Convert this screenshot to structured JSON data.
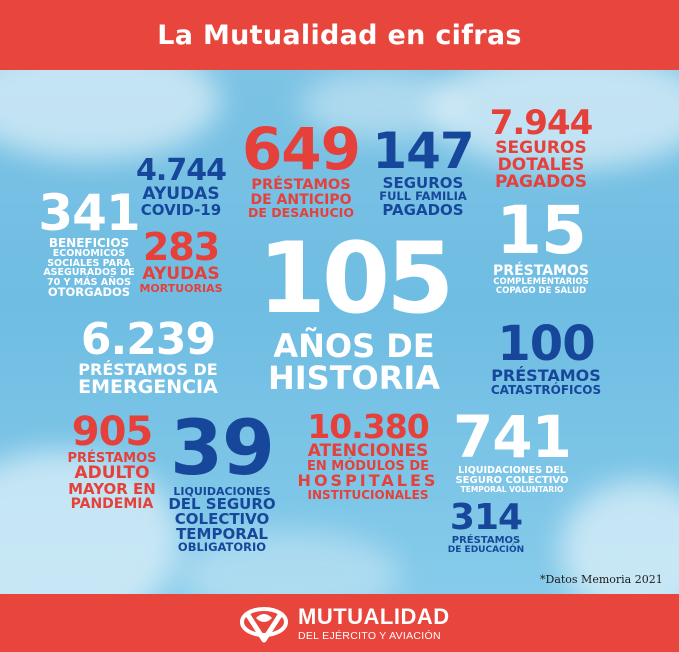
{
  "header": {
    "title": "La Mutualidad en cifras"
  },
  "colors": {
    "red": "#e8453c",
    "blue": "#17479a",
    "white": "#ffffff",
    "sky": "#7cc3e4"
  },
  "stats": {
    "beneficios": {
      "number": "341",
      "lines": [
        "BENEFICIOS",
        "ECONÓMICOS",
        "SOCIALES PARA",
        "ASEGURADOS DE",
        "70 Y MÁS AÑOS",
        "OTORGADOS"
      ]
    },
    "covid": {
      "number": "4.744",
      "lines": [
        "AYUDAS",
        "COVID-19"
      ]
    },
    "mortuorias": {
      "number": "283",
      "lines": [
        "AYUDAS",
        "MORTUORIAS"
      ]
    },
    "anticipo": {
      "number": "649",
      "lines": [
        "PRÉSTAMOS",
        "DE ANTICIPO",
        "DE DESAHUCIO"
      ]
    },
    "full_familia": {
      "number": "147",
      "lines": [
        "SEGUROS",
        "FULL FAMILIA",
        "PAGADOS"
      ]
    },
    "dotales": {
      "number": "7.944",
      "lines": [
        "SEGUROS",
        "DOTALES",
        "PAGADOS"
      ]
    },
    "complementarios": {
      "number": "15",
      "lines": [
        "PRÉSTAMOS",
        "COMPLEMENTARIOS",
        "COPAGO DE SALUD"
      ]
    },
    "historia": {
      "number": "105",
      "lines": [
        "AÑOS DE",
        "HISTORIA"
      ]
    },
    "emergencia": {
      "number": "6.239",
      "lines": [
        "PRÉSTAMOS DE",
        "EMERGENCIA"
      ]
    },
    "catastroficos": {
      "number": "100",
      "lines": [
        "PRÉSTAMOS",
        "CATASTRÓFICOS"
      ]
    },
    "adulto_mayor": {
      "number": "905",
      "lines": [
        "PRÉSTAMOS",
        "ADULTO",
        "MAYOR EN",
        "PANDEMIA"
      ]
    },
    "colectivo_obligatorio": {
      "number": "39",
      "lines": [
        "LIQUIDACIONES",
        "DEL SEGURO",
        "COLECTIVO",
        "TEMPORAL",
        "OBLIGATORIO"
      ]
    },
    "atenciones": {
      "number": "10.380",
      "lines": [
        "ATENCIONES",
        "EN MÓDULOS DE",
        "HOSPITALES",
        "INSTITUCIONALES"
      ]
    },
    "colectivo_voluntario": {
      "number": "741",
      "lines": [
        "LIQUIDACIONES DEL",
        "SEGURO COLECTIVO",
        "TEMPORAL VOLUNTARIO"
      ]
    },
    "educacion": {
      "number": "314",
      "lines": [
        "PRÉSTAMOS",
        "DE EDUCACIÓN"
      ]
    }
  },
  "note": "*Datos Memoria 2021",
  "footer": {
    "logo_icon": "mutualidad-logo-icon",
    "brand": "MUTUALIDAD",
    "brand_sub": "DEL EJÉRCITO Y AVIACIÓN"
  }
}
